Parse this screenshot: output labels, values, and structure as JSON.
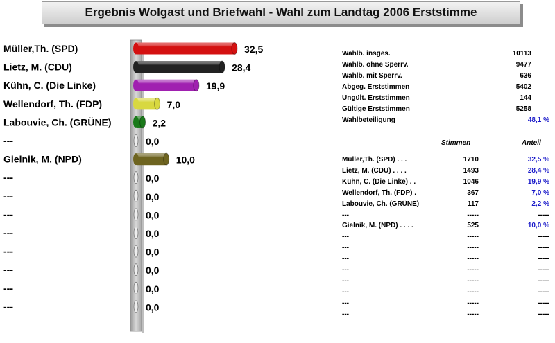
{
  "title": "Ergebnis Wolgast und  Briefwahl -  Wahl zum Landtag 2006 Erststimme",
  "chart_data": {
    "type": "bar",
    "orientation": "horizontal",
    "categories": [
      "Müller,Th. (SPD)",
      "Lietz, M. (CDU)",
      "Kühn, C. (Die Linke)",
      "Wellendorf, Th. (FDP)",
      "Labouvie, Ch. (GRÜNE)",
      "---",
      "Gielnik, M. (NPD)",
      "---",
      "---",
      "---",
      "---",
      "---",
      "---",
      "---",
      "---"
    ],
    "values": [
      32.5,
      28.4,
      19.9,
      7.0,
      2.2,
      0.0,
      10.0,
      0.0,
      0.0,
      0.0,
      0.0,
      0.0,
      0.0,
      0.0,
      0.0
    ],
    "value_labels": [
      "32,5",
      "28,4",
      "19,9",
      "7,0",
      "2,2",
      "0,0",
      "10,0",
      "0,0",
      "0,0",
      "0,0",
      "0,0",
      "0,0",
      "0,0",
      "0,0",
      "0,0"
    ],
    "colors": [
      "#d41111",
      "#222222",
      "#a020b0",
      "#d8d840",
      "#1a7a1a",
      "#cccccc",
      "#6e6420",
      "#cccccc",
      "#cccccc",
      "#cccccc",
      "#cccccc",
      "#cccccc",
      "#cccccc",
      "#cccccc",
      "#cccccc"
    ],
    "xlim": [
      0,
      35
    ],
    "grid": false,
    "legend": "none"
  },
  "stats": [
    {
      "label": "Wahlb. insges.",
      "value": "10113",
      "blue": false
    },
    {
      "label": "Wahlb. ohne Sperrv.",
      "value": "9477",
      "blue": false
    },
    {
      "label": "Wahlb. mit Sperrv.",
      "value": "636",
      "blue": false
    },
    {
      "label": "Abgeg. Erststimmen",
      "value": "5402",
      "blue": false
    },
    {
      "label": "Ungült. Erststimmen",
      "value": "144",
      "blue": false
    },
    {
      "label": "Gültige Erststimmen",
      "value": "5258",
      "blue": false
    },
    {
      "label": "Wahlbeteiligung",
      "value": "48,1 %",
      "blue": true
    }
  ],
  "table": {
    "header_votes": "Stimmen",
    "header_share": "Anteil",
    "rows": [
      {
        "name": "Müller,Th. (SPD)  .  .  .",
        "votes": "1710",
        "share": "32,5 %"
      },
      {
        "name": "Lietz, M. (CDU)  .  .  .  .",
        "votes": "1493",
        "share": "28,4 %"
      },
      {
        "name": "Kühn, C. (Die Linke)  .  .",
        "votes": "1046",
        "share": "19,9 %"
      },
      {
        "name": "Wellendorf, Th. (FDP)  .",
        "votes": "367",
        "share": "7,0 %"
      },
      {
        "name": "Labouvie, Ch. (GRÜNE)",
        "votes": "117",
        "share": "2,2 %"
      },
      {
        "name": "---",
        "votes": "-----",
        "share": "-----"
      },
      {
        "name": "Gielnik, M. (NPD)  .  .  .  .",
        "votes": "525",
        "share": "10,0 %"
      },
      {
        "name": "---",
        "votes": "-----",
        "share": "-----"
      },
      {
        "name": "---",
        "votes": "-----",
        "share": "-----"
      },
      {
        "name": "---",
        "votes": "-----",
        "share": "-----"
      },
      {
        "name": "---",
        "votes": "-----",
        "share": "-----"
      },
      {
        "name": "---",
        "votes": "-----",
        "share": "-----"
      },
      {
        "name": "---",
        "votes": "-----",
        "share": "-----"
      },
      {
        "name": "---",
        "votes": "-----",
        "share": "-----"
      },
      {
        "name": "---",
        "votes": "-----",
        "share": "-----"
      }
    ]
  }
}
